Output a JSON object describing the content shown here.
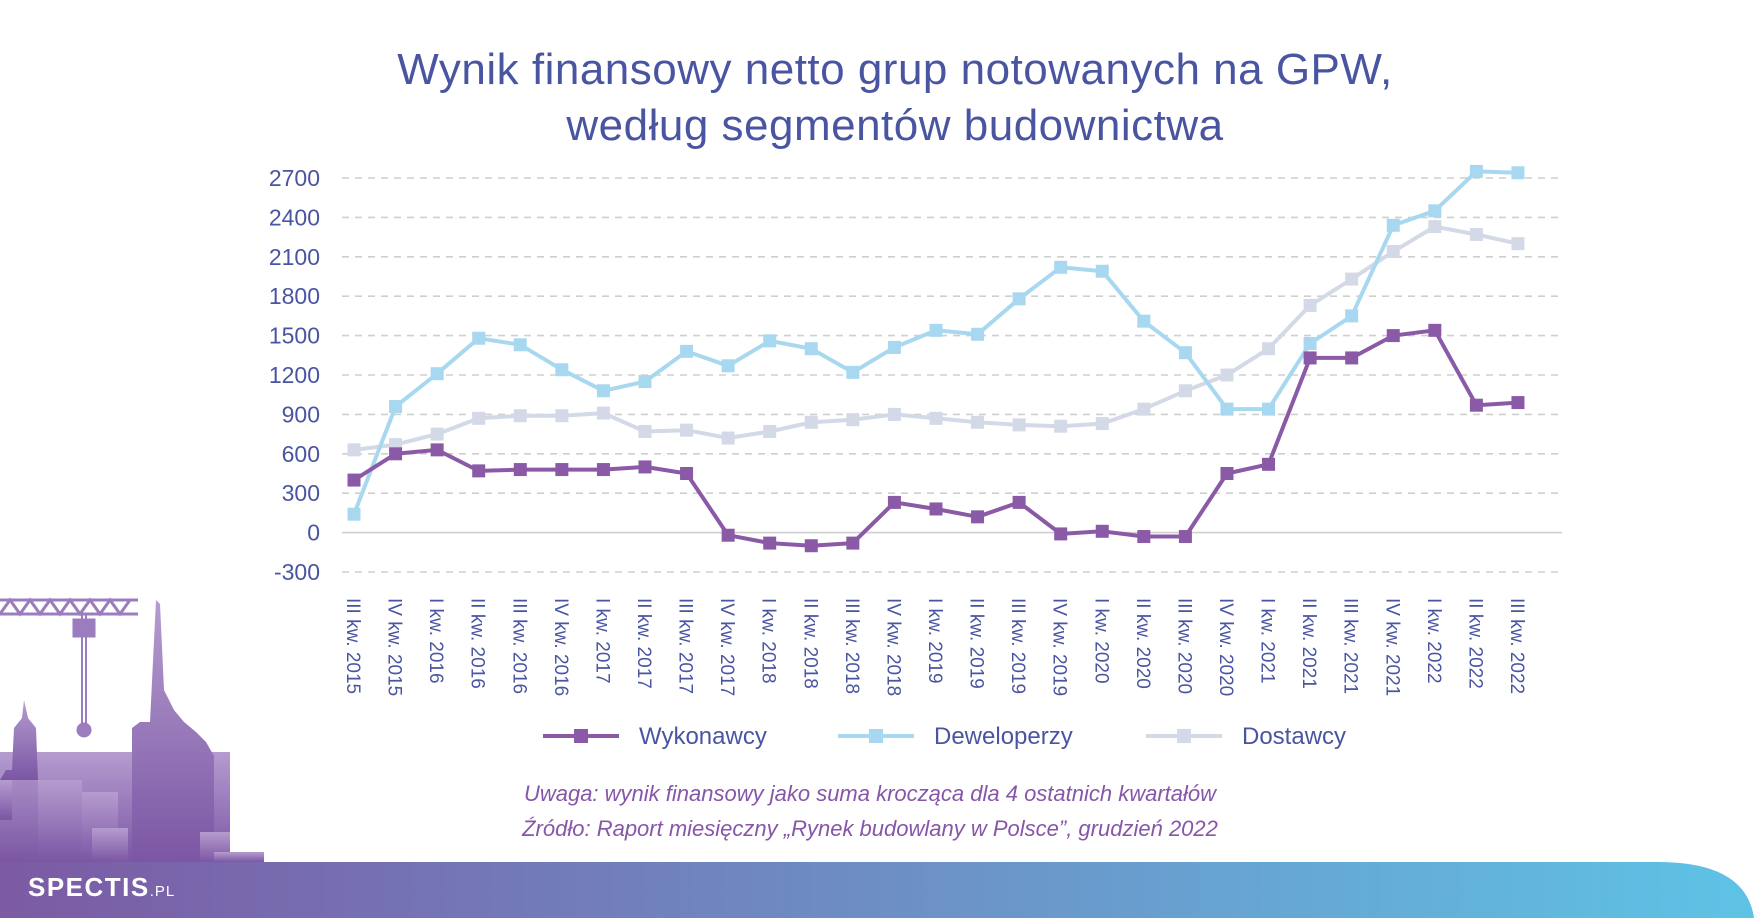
{
  "title": {
    "line1": "Wynik finansowy netto grup notowanych na GPW,",
    "line2": "według segmentów budownictwa"
  },
  "notes": {
    "note": "Uwaga: wynik finansowy jako suma krocząca dla 4 ostatnich kwartałów",
    "source": "Źródło: Raport miesięczny „Rynek budowlany w Polsce”, grudzień 2022"
  },
  "brand": {
    "name": "SPECTIS",
    "suffix": ".PL"
  },
  "colors": {
    "title": "#4a55a2",
    "axis_text": "#4a55a2",
    "note_text": "#8656a8",
    "grid": "#cfcfcf",
    "Wykonawcy": "#8a5aa6",
    "Deweloperzy": "#a8d8f0",
    "Dostawcy": "#d3d9e6",
    "banner_start": "#7c5aa4",
    "banner_end": "#5ec3e6"
  },
  "chart_data": {
    "type": "line",
    "title": "Wynik finansowy netto grup notowanych na GPW, według segmentów budownictwa",
    "xlabel": "",
    "ylabel": "",
    "ylim": [
      -300,
      2700
    ],
    "yticks": [
      2700,
      2400,
      2100,
      1800,
      1500,
      1200,
      900,
      600,
      300,
      0,
      -300
    ],
    "grid": "horizontal dashed",
    "legend_position": "bottom",
    "categories": [
      "III kw. 2015",
      "IV kw. 2015",
      "I kw. 2016",
      "II kw. 2016",
      "III kw. 2016",
      "IV kw. 2016",
      "I kw. 2017",
      "II kw. 2017",
      "III kw. 2017",
      "IV kw. 2017",
      "I kw. 2018",
      "II kw. 2018",
      "III kw. 2018",
      "IV kw. 2018",
      "I kw. 2019",
      "II kw. 2019",
      "III kw. 2019",
      "IV kw. 2019",
      "I kw. 2020",
      "II kw. 2020",
      "III kw. 2020",
      "IV kw. 2020",
      "I kw. 2021",
      "II kw. 2021",
      "III kw. 2021",
      "IV kw. 2021",
      "I kw. 2022",
      "II kw. 2022",
      "III kw. 2022"
    ],
    "series": [
      {
        "name": "Wykonawcy",
        "values": [
          400,
          600,
          630,
          470,
          480,
          480,
          480,
          500,
          450,
          -20,
          -80,
          -100,
          -80,
          230,
          180,
          120,
          230,
          -10,
          10,
          -30,
          -30,
          450,
          520,
          1330,
          1330,
          1500,
          1540,
          970,
          990
        ]
      },
      {
        "name": "Deweloperzy",
        "values": [
          140,
          960,
          1210,
          1480,
          1430,
          1240,
          1080,
          1150,
          1380,
          1270,
          1460,
          1400,
          1220,
          1410,
          1540,
          1510,
          1780,
          2020,
          1990,
          1610,
          1370,
          940,
          940,
          1440,
          1650,
          2340,
          2450,
          2750,
          2740
        ]
      },
      {
        "name": "Dostawcy",
        "values": [
          630,
          670,
          750,
          870,
          890,
          890,
          910,
          770,
          780,
          720,
          770,
          840,
          860,
          900,
          870,
          840,
          820,
          810,
          830,
          940,
          1080,
          1200,
          1400,
          1730,
          1930,
          2140,
          2330,
          2270,
          2200
        ]
      }
    ]
  }
}
